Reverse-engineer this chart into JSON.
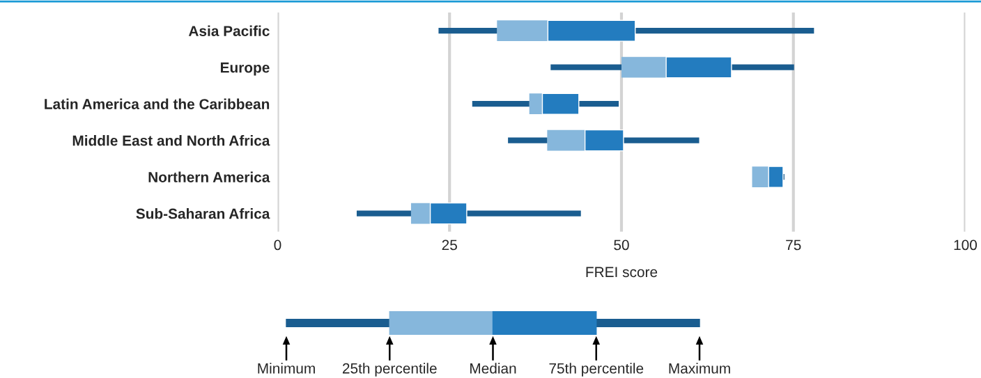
{
  "chart_data": {
    "type": "box",
    "orientation": "horizontal",
    "xlabel": "FREI score",
    "categories": [
      "Asia Pacific",
      "Europe",
      "Latin America and the Caribbean",
      "Middle East and North Africa",
      "Northern America",
      "Sub-Saharan Africa"
    ],
    "boxes": [
      {
        "low": 23.4,
        "q1": 31.9,
        "median": 39.3,
        "q3": 52.0,
        "high": 78.0
      },
      {
        "low": 39.7,
        "q1": 50.0,
        "median": 56.5,
        "q3": 66.0,
        "high": 75.1
      },
      {
        "low": 28.3,
        "q1": 36.6,
        "median": 38.5,
        "q3": 43.8,
        "high": 49.6
      },
      {
        "low": 33.5,
        "q1": 39.2,
        "median": 44.7,
        "q3": 50.3,
        "high": 61.3
      },
      {
        "low": 69.0,
        "q1": 69.0,
        "median": 71.4,
        "q3": 73.5,
        "high": 73.7
      },
      {
        "low": 11.5,
        "q1": 19.4,
        "median": 22.2,
        "q3": 27.5,
        "high": 44.1
      }
    ],
    "color": "#86b7dc",
    "xlim": [
      0,
      100
    ],
    "xticks": [
      0,
      25,
      50,
      75,
      100
    ],
    "grid": "x",
    "annotations": [
      "Minimum",
      "25th percentile",
      "Median",
      "75th percentile",
      "Maximum"
    ]
  }
}
